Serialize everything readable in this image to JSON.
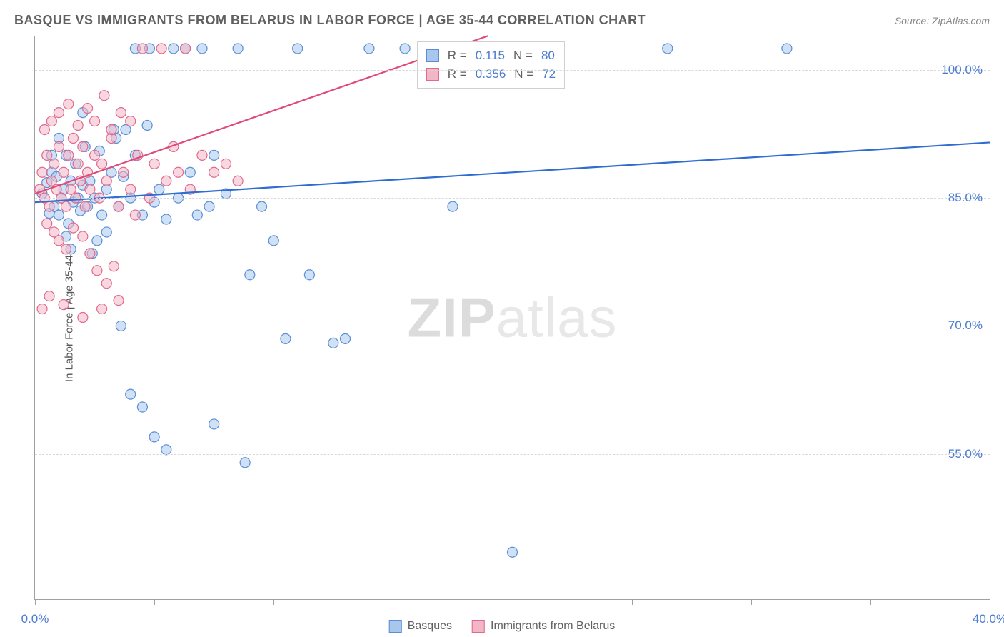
{
  "header": {
    "title": "BASQUE VS IMMIGRANTS FROM BELARUS IN LABOR FORCE | AGE 35-44 CORRELATION CHART",
    "source": "Source: ZipAtlas.com"
  },
  "chart": {
    "type": "scatter",
    "y_label": "In Labor Force | Age 35-44",
    "xlim": [
      0,
      40
    ],
    "ylim": [
      38,
      104
    ],
    "x_ticks": [
      0,
      5,
      10,
      15,
      20,
      25,
      30,
      35,
      40
    ],
    "x_tick_labels": {
      "0": "0.0%",
      "40": "40.0%"
    },
    "y_ticks": [
      55,
      70,
      85,
      100
    ],
    "y_tick_labels": {
      "55": "55.0%",
      "70": "70.0%",
      "85": "85.0%",
      "100": "100.0%"
    },
    "background_color": "#ffffff",
    "grid_color": "#d8d8d8",
    "axis_color": "#a0a0a0",
    "tick_label_color": "#4a7bd0",
    "label_color": "#555555",
    "marker_radius": 7,
    "marker_stroke_width": 1.2,
    "line_width": 2.2,
    "font_family": "Arial",
    "title_fontsize": 18,
    "label_fontsize": 15,
    "tick_fontsize": 17,
    "series": [
      {
        "name": "Basques",
        "fill": "#a9c7ec",
        "stroke": "#5a8fd6",
        "fill_opacity": 0.55,
        "line_color": "#2f6dd0",
        "trend": {
          "x1": 0,
          "y1": 84.5,
          "x2": 40,
          "y2": 91.5
        },
        "points": [
          [
            0.3,
            85.5
          ],
          [
            0.5,
            86.8
          ],
          [
            0.6,
            83.2
          ],
          [
            0.7,
            88.0
          ],
          [
            0.8,
            84.0
          ],
          [
            0.9,
            87.5
          ],
          [
            1.0,
            83.0
          ],
          [
            1.1,
            85.0
          ],
          [
            1.2,
            86.0
          ],
          [
            1.3,
            90.0
          ],
          [
            1.4,
            82.0
          ],
          [
            1.5,
            87.0
          ],
          [
            1.6,
            84.5
          ],
          [
            1.7,
            89.0
          ],
          [
            1.8,
            85.0
          ],
          [
            1.9,
            83.5
          ],
          [
            2.0,
            86.5
          ],
          [
            2.1,
            91.0
          ],
          [
            2.2,
            84.0
          ],
          [
            2.3,
            87.0
          ],
          [
            2.5,
            85.0
          ],
          [
            2.7,
            90.5
          ],
          [
            2.8,
            83.0
          ],
          [
            3.0,
            86.0
          ],
          [
            3.2,
            88.0
          ],
          [
            3.4,
            92.0
          ],
          [
            3.5,
            84.0
          ],
          [
            3.7,
            87.5
          ],
          [
            4.0,
            85.0
          ],
          [
            4.2,
            90.0
          ],
          [
            4.5,
            83.0
          ],
          [
            4.8,
            102.5
          ],
          [
            5.0,
            84.5
          ],
          [
            5.2,
            86.0
          ],
          [
            5.5,
            82.5
          ],
          [
            5.8,
            102.5
          ],
          [
            6.0,
            85.0
          ],
          [
            6.3,
            102.5
          ],
          [
            6.5,
            88.0
          ],
          [
            6.8,
            83.0
          ],
          [
            7.0,
            102.5
          ],
          [
            7.3,
            84.0
          ],
          [
            7.5,
            90.0
          ],
          [
            8.0,
            85.5
          ],
          [
            8.5,
            102.5
          ],
          [
            9.0,
            76.0
          ],
          [
            9.5,
            84.0
          ],
          [
            10.0,
            80.0
          ],
          [
            10.5,
            68.5
          ],
          [
            11.0,
            102.5
          ],
          [
            3.8,
            93.0
          ],
          [
            4.2,
            102.5
          ],
          [
            2.6,
            80.0
          ],
          [
            3.0,
            81.0
          ],
          [
            1.5,
            79.0
          ],
          [
            4.5,
            60.5
          ],
          [
            5.0,
            57.0
          ],
          [
            5.5,
            55.5
          ],
          [
            7.5,
            58.5
          ],
          [
            8.8,
            54.0
          ],
          [
            11.5,
            76.0
          ],
          [
            12.5,
            68.0
          ],
          [
            13.0,
            68.5
          ],
          [
            14.0,
            102.5
          ],
          [
            15.5,
            102.5
          ],
          [
            17.5,
            84.0
          ],
          [
            18.5,
            102.5
          ],
          [
            19.5,
            101.0
          ],
          [
            20.0,
            43.5
          ],
          [
            26.5,
            102.5
          ],
          [
            31.5,
            102.5
          ],
          [
            2.0,
            95.0
          ],
          [
            3.3,
            93.0
          ],
          [
            4.7,
            93.5
          ],
          [
            1.0,
            92.0
          ],
          [
            0.7,
            90.0
          ],
          [
            1.3,
            80.5
          ],
          [
            2.4,
            78.5
          ],
          [
            3.6,
            70.0
          ],
          [
            4.0,
            62.0
          ]
        ]
      },
      {
        "name": "Immigrants from Belarus",
        "fill": "#f2b6c6",
        "stroke": "#e06a8c",
        "fill_opacity": 0.55,
        "line_color": "#e04a7a",
        "trend": {
          "x1": 0,
          "y1": 85.5,
          "x2": 19,
          "y2": 104
        },
        "points": [
          [
            0.2,
            86.0
          ],
          [
            0.3,
            88.0
          ],
          [
            0.4,
            85.0
          ],
          [
            0.5,
            90.0
          ],
          [
            0.6,
            84.0
          ],
          [
            0.7,
            87.0
          ],
          [
            0.8,
            89.0
          ],
          [
            0.9,
            86.0
          ],
          [
            1.0,
            91.0
          ],
          [
            1.1,
            85.0
          ],
          [
            1.2,
            88.0
          ],
          [
            1.3,
            84.0
          ],
          [
            1.4,
            90.0
          ],
          [
            1.5,
            86.0
          ],
          [
            1.6,
            92.0
          ],
          [
            1.7,
            85.0
          ],
          [
            1.8,
            89.0
          ],
          [
            1.9,
            87.0
          ],
          [
            2.0,
            91.0
          ],
          [
            2.1,
            84.0
          ],
          [
            2.2,
            88.0
          ],
          [
            2.3,
            86.0
          ],
          [
            2.5,
            90.0
          ],
          [
            2.7,
            85.0
          ],
          [
            2.8,
            89.0
          ],
          [
            3.0,
            87.0
          ],
          [
            3.2,
            92.0
          ],
          [
            3.5,
            84.0
          ],
          [
            3.7,
            88.0
          ],
          [
            4.0,
            86.0
          ],
          [
            4.3,
            90.0
          ],
          [
            4.5,
            102.5
          ],
          [
            4.8,
            85.0
          ],
          [
            5.0,
            89.0
          ],
          [
            5.3,
            102.5
          ],
          [
            5.5,
            87.0
          ],
          [
            5.8,
            91.0
          ],
          [
            6.0,
            88.0
          ],
          [
            6.3,
            102.5
          ],
          [
            6.5,
            86.0
          ],
          [
            7.0,
            90.0
          ],
          [
            7.5,
            88.0
          ],
          [
            8.0,
            89.0
          ],
          [
            8.5,
            87.0
          ],
          [
            0.5,
            82.0
          ],
          [
            0.8,
            81.0
          ],
          [
            1.0,
            80.0
          ],
          [
            1.3,
            79.0
          ],
          [
            1.6,
            81.5
          ],
          [
            2.0,
            80.5
          ],
          [
            2.3,
            78.5
          ],
          [
            2.6,
            76.5
          ],
          [
            3.0,
            75.0
          ],
          [
            3.3,
            77.0
          ],
          [
            0.4,
            93.0
          ],
          [
            0.7,
            94.0
          ],
          [
            1.0,
            95.0
          ],
          [
            1.4,
            96.0
          ],
          [
            1.8,
            93.5
          ],
          [
            2.2,
            95.5
          ],
          [
            2.5,
            94.0
          ],
          [
            2.9,
            97.0
          ],
          [
            3.2,
            93.0
          ],
          [
            3.6,
            95.0
          ],
          [
            4.0,
            94.0
          ],
          [
            0.3,
            72.0
          ],
          [
            0.6,
            73.5
          ],
          [
            1.2,
            72.5
          ],
          [
            2.0,
            71.0
          ],
          [
            2.8,
            72.0
          ],
          [
            3.5,
            73.0
          ],
          [
            4.2,
            83.0
          ]
        ]
      }
    ],
    "stats": [
      {
        "r_label": "R =",
        "r": "0.115",
        "n_label": "N =",
        "n": "80"
      },
      {
        "r_label": "R =",
        "r": "0.356",
        "n_label": "N =",
        "n": "72"
      }
    ],
    "watermark": {
      "part1": "ZIP",
      "part2": "atlas"
    }
  },
  "legend": {
    "items": [
      {
        "label": "Basques"
      },
      {
        "label": "Immigrants from Belarus"
      }
    ]
  }
}
